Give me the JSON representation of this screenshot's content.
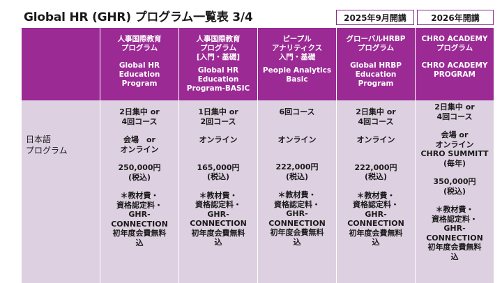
{
  "title": "Global HR (GHR) プログラム一覧表 3/4",
  "badges": {
    "sep2025": "2025年9月開講",
    "y2026": "2026年開講"
  },
  "row_label": "日本語\nプログラム",
  "columns": [
    {
      "ja": "人事国際教育\nプログラム",
      "en": "Global HR\nEducation\nProgram",
      "format": "2日集中 or\n4回コース",
      "venue": "会場　or\nオンライン",
      "price": "250,000円\n(税込)",
      "note": "＊教材費・\n資格認定料・\nGHR-\nCONNECTION\n初年度会費無料\n込"
    },
    {
      "ja": "人事国際教育\nプログラム\n[入門・基礎]",
      "en": "Global HR\nEducation\nProgram-BASIC",
      "format": "1日集中 or\n2回コース",
      "venue": "オンライン",
      "price": "165,000円\n(税込)",
      "note": "＊教材費・\n資格認定料・\nGHR-\nCONNECTION\n初年度会費無料\n込"
    },
    {
      "ja": "ピープル\nアナリティクス\n入門・基礎",
      "en": "People Analytics\nBasic",
      "format": "6回コース",
      "venue": "オンライン",
      "price": "222,000円\n(税込)",
      "note": "＊教材費・\n資格認定料・\nGHR-\nCONNECTION\n初年度会費無料\n込"
    },
    {
      "ja": "グローバルHRBP\nプログラム",
      "en": "Global HRBP\nEducation\nProgram",
      "format": "2日集中 or\n4回コース",
      "venue": "オンライン",
      "price": "222,000円\n(税込)",
      "note": "＊教材費・\n資格認定料・\nGHR-\nCONNECTION\n初年度会費無料\n込"
    },
    {
      "ja": "CHRO ACADEMY\nプログラム",
      "en": "CHRO ACADEMY\nPROGRAM",
      "format": "2日集中 or\n4回コース",
      "venue": "会場 or\nオンライン\nCHRO SUMMITT\n(毎年)",
      "price": "350,000円\n(税込)",
      "note": "＊教材費・\n資格認定料・\nGHR-\nCONNECTION\n初年度会費無料\n込"
    }
  ]
}
